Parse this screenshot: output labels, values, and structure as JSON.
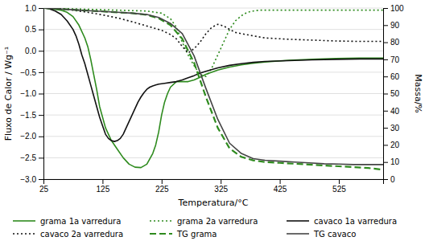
{
  "chart_data": {
    "type": "line",
    "xlabel": "Temperatura/°C",
    "ylabel": "Fluxo de Calor / Wg⁻¹",
    "y2label": "Massa/%",
    "xlim": [
      25,
      600
    ],
    "ylim": [
      -3,
      1
    ],
    "y2lim": [
      0,
      100
    ],
    "xticks": [
      25,
      125,
      225,
      325,
      425,
      525
    ],
    "yticks": [
      {
        "value": -3,
        "label": "−3.0"
      },
      {
        "value": -2.5,
        "label": "−2.5"
      },
      {
        "value": -2,
        "label": "−2.0"
      },
      {
        "value": -1.5,
        "label": "−1.5"
      },
      {
        "value": -1,
        "label": "−1.0"
      },
      {
        "value": -0.5,
        "label": "−0.5"
      },
      {
        "value": 0,
        "label": "0.0"
      },
      {
        "value": 0.5,
        "label": "0.5"
      },
      {
        "value": 1,
        "label": "1.0"
      }
    ],
    "y2ticks": [
      0,
      10,
      20,
      30,
      40,
      50,
      60,
      70,
      80,
      90,
      100
    ],
    "grid": "y",
    "legend": "bottom",
    "series": [
      {
        "name": "grama 1a varredura",
        "color": "#2e8b1e",
        "line_style": "solid",
        "x": [
          25,
          35,
          45,
          55,
          65,
          75,
          85,
          95,
          100,
          105,
          110,
          115,
          120,
          130,
          140,
          150,
          160,
          170,
          180,
          190,
          200,
          210,
          215,
          220,
          225,
          230,
          235,
          240,
          250,
          260,
          270,
          280,
          290,
          300,
          320,
          340,
          360,
          380,
          400,
          440,
          480,
          520,
          560,
          600
        ],
        "values": [
          1.0,
          0.99,
          0.97,
          0.95,
          0.9,
          0.8,
          0.6,
          0.3,
          0.1,
          -0.2,
          -0.55,
          -0.9,
          -1.3,
          -1.8,
          -2.1,
          -2.3,
          -2.5,
          -2.65,
          -2.72,
          -2.73,
          -2.65,
          -2.4,
          -2.2,
          -1.9,
          -1.5,
          -1.2,
          -1.0,
          -0.85,
          -0.72,
          -0.72,
          -0.72,
          -0.68,
          -0.62,
          -0.55,
          -0.45,
          -0.38,
          -0.33,
          -0.29,
          -0.26,
          -0.22,
          -0.2,
          -0.18,
          -0.17,
          -0.17
        ]
      },
      {
        "name": "grama 2a varredura",
        "color": "#2e8b1e",
        "line_style": "dotted",
        "x": [
          25,
          50,
          75,
          100,
          125,
          150,
          175,
          200,
          225,
          240,
          250,
          260,
          270,
          280,
          290,
          300,
          310,
          320,
          330,
          340,
          350,
          360,
          370,
          380,
          390,
          400,
          440,
          480,
          520,
          560,
          600
        ],
        "values": [
          1.0,
          0.99,
          0.98,
          0.97,
          0.96,
          0.95,
          0.94,
          0.93,
          0.88,
          0.75,
          0.55,
          0.2,
          -0.1,
          -0.35,
          -0.55,
          -0.6,
          -0.4,
          -0.1,
          0.2,
          0.5,
          0.7,
          0.82,
          0.9,
          0.93,
          0.95,
          0.95,
          0.95,
          0.95,
          0.95,
          0.95,
          0.95
        ]
      },
      {
        "name": "cavaco 1a varredura",
        "color": "#111111",
        "line_style": "solid",
        "x": [
          25,
          35,
          45,
          55,
          65,
          75,
          80,
          85,
          90,
          95,
          100,
          105,
          110,
          115,
          120,
          125,
          130,
          135,
          140,
          145,
          150,
          155,
          160,
          165,
          170,
          175,
          180,
          185,
          190,
          195,
          200,
          205,
          210,
          215,
          220,
          225,
          230,
          240,
          250,
          260,
          270,
          280,
          290,
          300,
          320,
          340,
          360,
          380,
          400,
          440,
          480,
          520,
          560,
          600
        ],
        "values": [
          1.0,
          0.98,
          0.93,
          0.85,
          0.7,
          0.5,
          0.35,
          0.15,
          -0.1,
          -0.3,
          -0.55,
          -0.8,
          -1.05,
          -1.3,
          -1.55,
          -1.75,
          -1.95,
          -2.05,
          -2.1,
          -2.12,
          -2.1,
          -2.05,
          -1.95,
          -1.8,
          -1.65,
          -1.5,
          -1.35,
          -1.2,
          -1.08,
          -0.98,
          -0.9,
          -0.85,
          -0.82,
          -0.8,
          -0.78,
          -0.77,
          -0.76,
          -0.74,
          -0.72,
          -0.68,
          -0.63,
          -0.58,
          -0.52,
          -0.48,
          -0.4,
          -0.34,
          -0.3,
          -0.27,
          -0.25,
          -0.23,
          -0.21,
          -0.2,
          -0.19,
          -0.19
        ]
      },
      {
        "name": "cavaco 2a varredura",
        "color": "#111111",
        "line_style": "dotted",
        "x": [
          25,
          50,
          75,
          100,
          125,
          150,
          175,
          200,
          225,
          240,
          250,
          260,
          270,
          280,
          290,
          300,
          310,
          320,
          330,
          340,
          350,
          360,
          380,
          400,
          440,
          480,
          520,
          560,
          600
        ],
        "values": [
          1.0,
          0.98,
          0.95,
          0.9,
          0.84,
          0.77,
          0.68,
          0.58,
          0.48,
          0.38,
          0.28,
          0.1,
          -0.05,
          0.05,
          0.2,
          0.4,
          0.55,
          0.62,
          0.58,
          0.5,
          0.43,
          0.4,
          0.35,
          0.3,
          0.27,
          0.25,
          0.23,
          0.22,
          0.22
        ]
      },
      {
        "name": "TG grama",
        "color": "#2e8b1e",
        "line_style": "dashed",
        "axis": "y2",
        "x": [
          25,
          50,
          75,
          100,
          125,
          150,
          175,
          200,
          220,
          240,
          260,
          280,
          300,
          320,
          340,
          360,
          380,
          400,
          425,
          450,
          475,
          500,
          525,
          550,
          575,
          600
        ],
        "values": [
          100,
          99.5,
          99,
          98.5,
          98,
          97.5,
          97,
          96,
          94,
          90,
          82,
          68,
          48,
          30,
          18,
          13,
          11,
          10,
          9.5,
          9,
          8.5,
          8,
          7.5,
          7,
          6.5,
          5.5
        ]
      },
      {
        "name": "TG cavaco",
        "color": "#444444",
        "line_style": "solid",
        "axis": "y2",
        "x": [
          25,
          50,
          75,
          100,
          125,
          150,
          175,
          200,
          220,
          240,
          260,
          280,
          300,
          320,
          340,
          360,
          380,
          400,
          425,
          450,
          475,
          500,
          525,
          550,
          575,
          600
        ],
        "values": [
          100,
          99.5,
          99,
          98.5,
          98,
          97.5,
          97,
          96.2,
          94.5,
          91,
          85,
          72,
          53,
          35,
          21,
          15,
          12,
          11,
          10.5,
          10,
          9.5,
          9,
          8.8,
          8.5,
          8.5,
          8.5
        ]
      }
    ]
  }
}
